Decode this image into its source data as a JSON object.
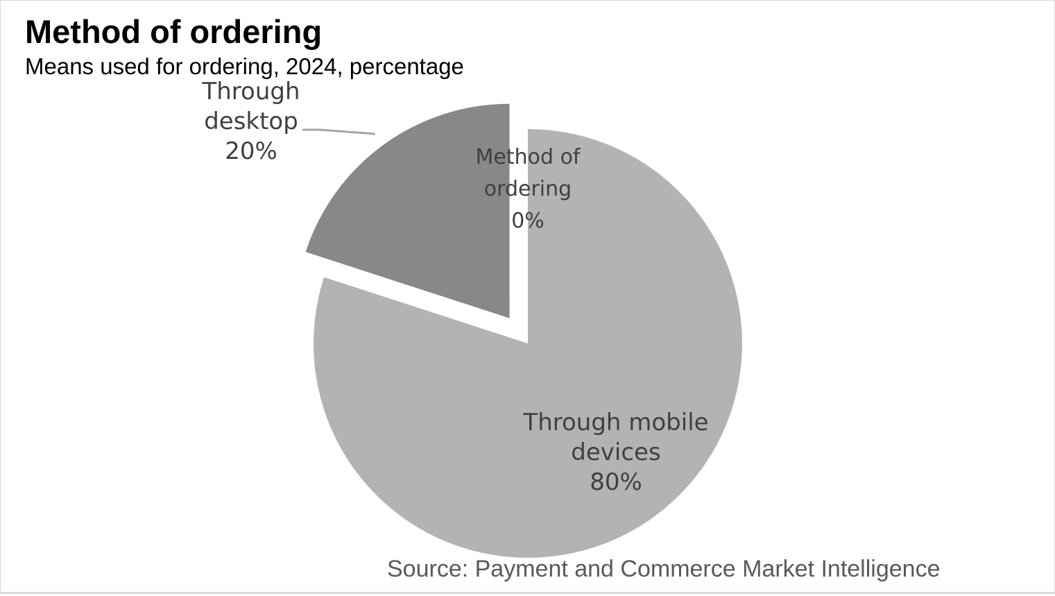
{
  "chart_data": {
    "type": "pie",
    "title": "Method of ordering",
    "subtitle": "Means used for ordering, 2024, percentage",
    "source": "Source: Payment and Commerce Market Intelligence",
    "slices": [
      {
        "label_lines": [
          "Method of",
          "ordering"
        ],
        "value": 0,
        "percent_label": "0%",
        "color": "#d0d0d0",
        "exploded": false
      },
      {
        "label_lines": [
          "Through mobile",
          "devices"
        ],
        "value": 80,
        "percent_label": "80%",
        "color": "#b3b3b3",
        "exploded": false
      },
      {
        "label_lines": [
          "Through",
          "desktop"
        ],
        "value": 20,
        "percent_label": "20%",
        "color": "#888888",
        "exploded": true
      }
    ],
    "legend": "none",
    "colors": {
      "label_text": "#404040",
      "leader_line": "#a6a6a6",
      "frame_border": "#d9d9d9"
    }
  }
}
